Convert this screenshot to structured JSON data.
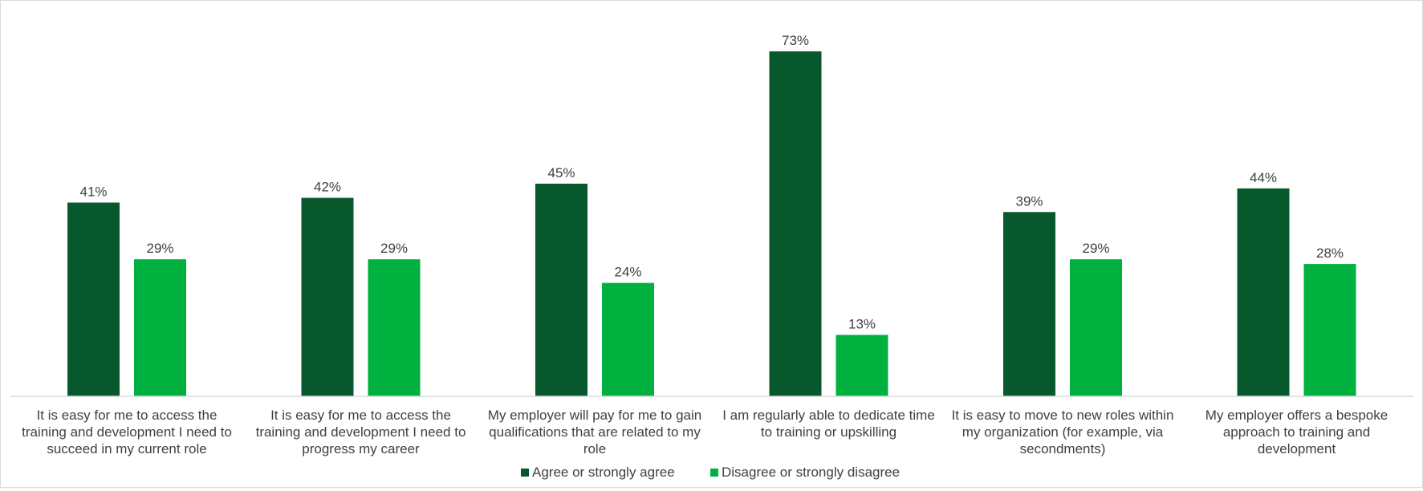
{
  "chart_data": {
    "type": "bar",
    "categories": [
      [
        "It is easy for me to access the",
        "training and development I need to",
        "succeed in my current role"
      ],
      [
        "It is easy for me to access the",
        "training and development I need to",
        "progress my career"
      ],
      [
        "My employer will pay for me to gain",
        "qualifications that are related to my",
        "role"
      ],
      [
        "I am regularly able to dedicate time",
        "to training or upskilling"
      ],
      [
        "It is easy to move to new roles within",
        "my organization (for example, via",
        "secondments)"
      ],
      [
        "My employer offers a bespoke",
        "approach to training and",
        "development"
      ]
    ],
    "series": [
      {
        "name": "Agree or strongly agree",
        "color": "#07582c",
        "values": [
          41,
          42,
          45,
          73,
          39,
          44
        ],
        "labels": [
          "41%",
          "42%",
          "45%",
          "73%",
          "39%",
          "44%"
        ]
      },
      {
        "name": "Disagree or strongly disagree",
        "color": "#00b140",
        "values": [
          29,
          29,
          24,
          13,
          29,
          28
        ],
        "labels": [
          "29%",
          "29%",
          "24%",
          "13%",
          "29%",
          "28%"
        ]
      }
    ],
    "ylim": [
      0,
      80
    ],
    "grid": false,
    "legend_position": "bottom"
  }
}
